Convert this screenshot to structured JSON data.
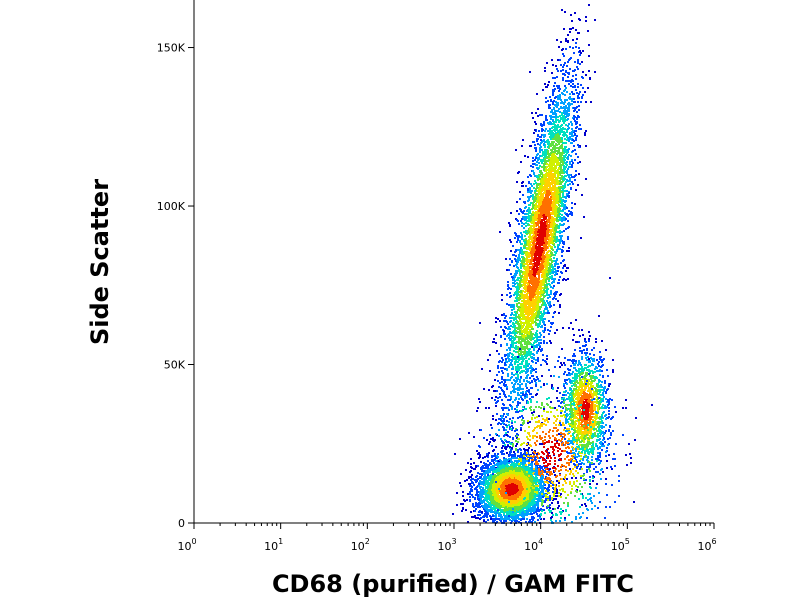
{
  "chart_data": {
    "type": "scatter",
    "style": "flow-cytometry-density-dot-plot",
    "title": "",
    "xlabel": "CD68 (purified) / GAM FITC",
    "ylabel": "Side Scatter",
    "x_scale": "log",
    "xlim": [
      1,
      1000000
    ],
    "ylim": [
      0,
      165000
    ],
    "x_ticks": [
      {
        "base": "10",
        "exp": "0",
        "value": 1
      },
      {
        "base": "10",
        "exp": "1",
        "value": 10
      },
      {
        "base": "10",
        "exp": "2",
        "value": 100
      },
      {
        "base": "10",
        "exp": "3",
        "value": 1000
      },
      {
        "base": "10",
        "exp": "4",
        "value": 10000
      },
      {
        "base": "10",
        "exp": "5",
        "value": 100000
      },
      {
        "base": "10",
        "exp": "6",
        "value": 1000000
      }
    ],
    "y_ticks": [
      {
        "label": "0",
        "value": 0
      },
      {
        "label": "50K",
        "value": 50000
      },
      {
        "label": "100K",
        "value": 100000
      },
      {
        "label": "150K",
        "value": 150000
      }
    ],
    "populations": [
      {
        "center_x": 9500,
        "center_y": 88000,
        "log_spread_x": 0.13,
        "spread_y": 26000,
        "tilt": 6e-06,
        "points": 5200
      },
      {
        "center_x": 4500,
        "center_y": 11000,
        "log_spread_x": 0.2,
        "spread_y": 5200,
        "tilt": 2e-06,
        "points": 3800
      },
      {
        "center_x": 32000,
        "center_y": 36000,
        "log_spread_x": 0.13,
        "spread_y": 9000,
        "tilt": 0.0,
        "points": 1500
      },
      {
        "center_x": 13000,
        "center_y": 22000,
        "log_spread_x": 0.35,
        "spread_y": 13000,
        "tilt": 0.0,
        "points": 900
      }
    ],
    "colorscale": [
      "#0000cc",
      "#0044ff",
      "#00a0ff",
      "#00e0c0",
      "#60e040",
      "#d0f000",
      "#ffd000",
      "#ff7000",
      "#e00000"
    ],
    "grid": false,
    "legend": "none"
  }
}
